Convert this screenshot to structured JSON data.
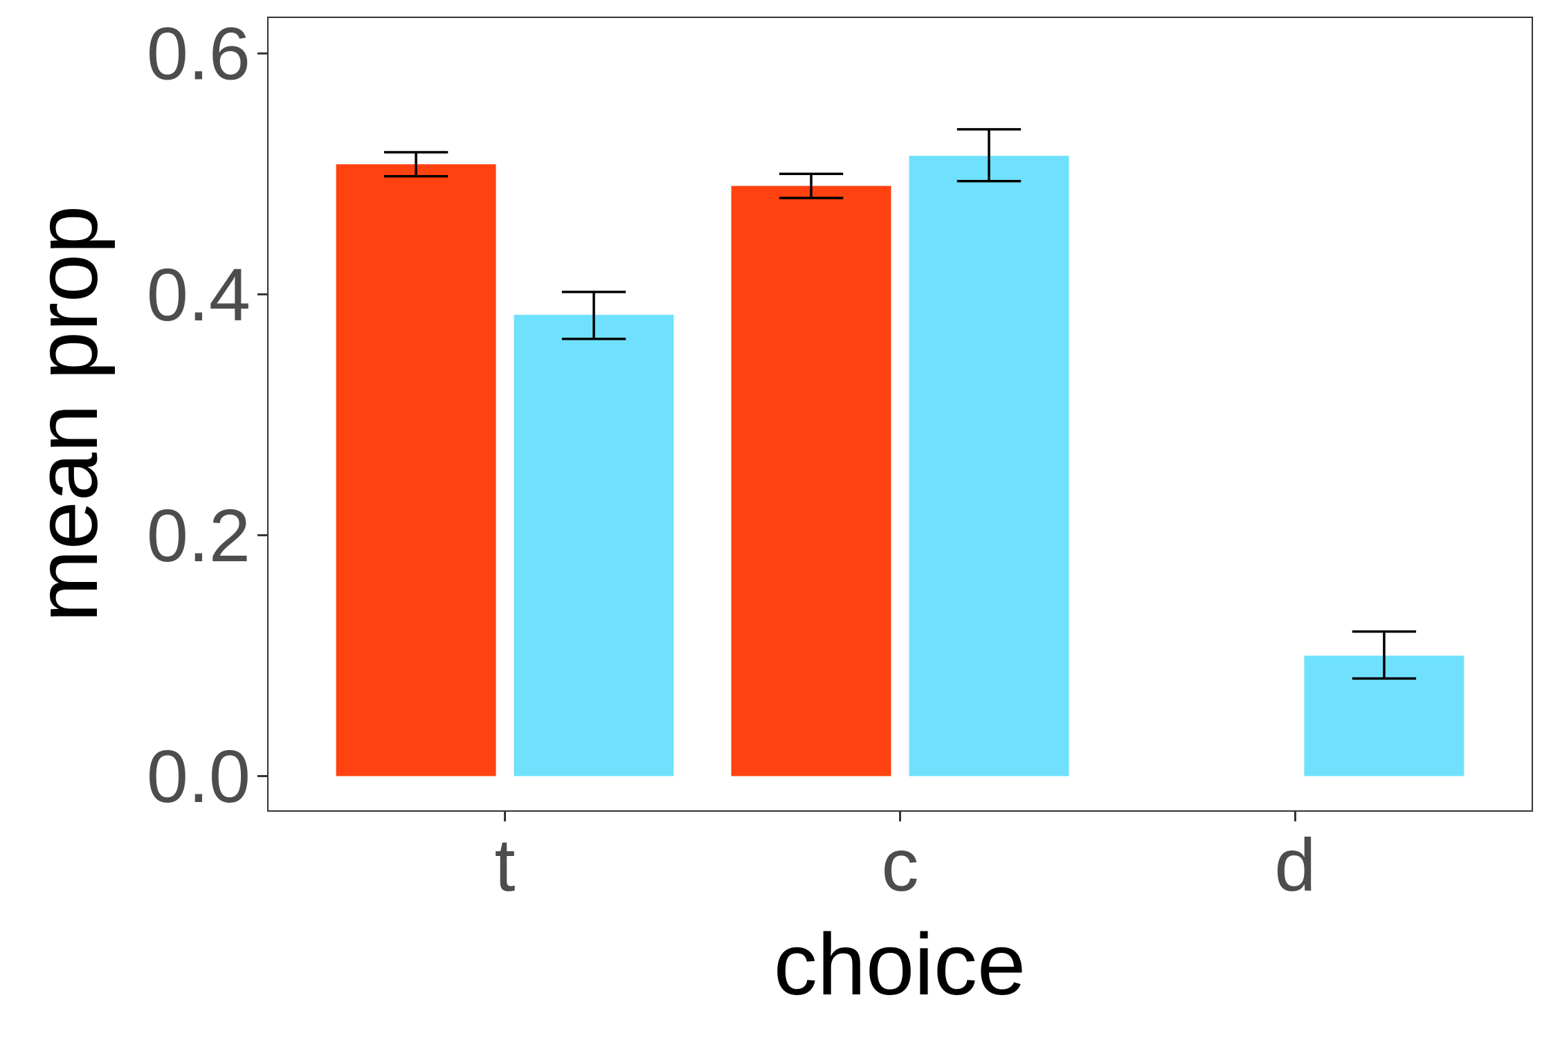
{
  "chart_data": {
    "type": "bar",
    "title": "",
    "xlabel": "choice",
    "ylabel": "mean prop",
    "categories": [
      "t",
      "c",
      "d"
    ],
    "ylim": [
      -0.029,
      0.63
    ],
    "yticks": [
      0.0,
      0.2,
      0.4,
      0.6
    ],
    "ytick_labels": [
      "0.0",
      "0.2",
      "0.4",
      "0.6"
    ],
    "grid": false,
    "legend": "none",
    "series": [
      {
        "color": "#FF4210",
        "values": [
          0.508,
          0.49,
          null
        ],
        "error_low": [
          0.498,
          0.48,
          null
        ],
        "error_high": [
          0.518,
          0.5,
          null
        ]
      },
      {
        "color": "#6FE1FD",
        "values": [
          0.383,
          0.515,
          0.1
        ],
        "error_low": [
          0.363,
          0.494,
          0.081
        ],
        "error_high": [
          0.402,
          0.537,
          0.12
        ]
      }
    ]
  }
}
